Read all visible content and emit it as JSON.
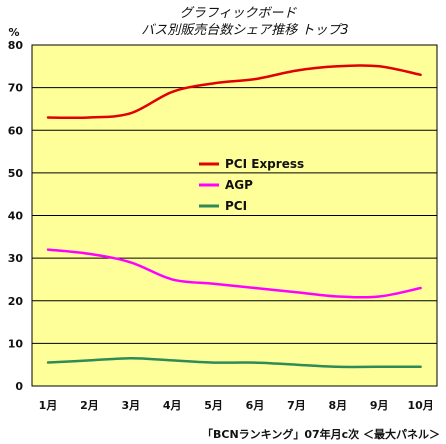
{
  "chart_data": {
    "type": "line",
    "title": "グラフィックボード",
    "subtitle": "バス別販売台数シェア推移 トップ3",
    "ylabel": "%",
    "xlabel": "",
    "categories": [
      "1月",
      "2月",
      "3月",
      "4月",
      "5月",
      "6月",
      "7月",
      "8月",
      "9月",
      "10月"
    ],
    "ylim": [
      0,
      80
    ],
    "yticks": [
      "0",
      "10",
      "20",
      "30",
      "40",
      "50",
      "60",
      "70",
      "80"
    ],
    "grid": true,
    "legend_position": "center",
    "background_color": "#ffff99",
    "series": [
      {
        "name": "PCI Express",
        "color": "#e00000",
        "values": [
          63,
          63,
          64,
          69,
          71,
          72,
          74,
          75,
          75,
          73
        ]
      },
      {
        "name": "AGP",
        "color": "#ff00ff",
        "values": [
          32,
          31,
          29,
          25,
          24,
          23,
          22,
          21,
          21,
          23
        ]
      },
      {
        "name": "PCI",
        "color": "#2e8b57",
        "values": [
          5.5,
          6,
          6.5,
          6,
          5.5,
          5.5,
          5,
          4.5,
          4.5,
          4.5
        ]
      }
    ],
    "source": "「BCNランキング」07年月c次 ＜最大パネル＞"
  }
}
